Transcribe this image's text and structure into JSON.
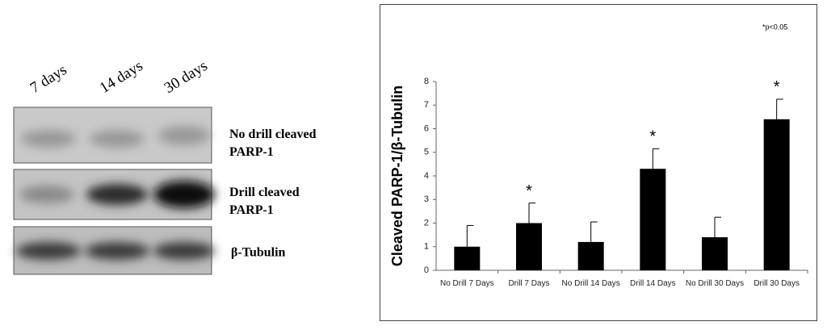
{
  "blot": {
    "lanes": [
      "7 days",
      "14 days",
      "30 days"
    ],
    "rows": [
      "No drill cleaved PARP-1",
      "Drill cleaved PARP-1",
      "β-Tubulin"
    ]
  },
  "chart_data": {
    "type": "bar",
    "y_label": "Cleaved PARP-1/β-Tubulin",
    "note": "*p<0.05",
    "categories": [
      "No Drill 7 Days",
      "Drill 7 Days",
      "No Drill 14 Days",
      "Drill 14 Days",
      "No Drill 30 Days",
      "Drill 30 Days"
    ],
    "values": [
      1.0,
      2.0,
      1.2,
      4.3,
      1.4,
      6.4
    ],
    "errors": [
      0.9,
      0.85,
      0.85,
      0.85,
      0.85,
      0.85
    ],
    "markers": [
      null,
      "*",
      null,
      "*",
      null,
      "*"
    ],
    "color": "#000000",
    "ylim": [
      0,
      8
    ],
    "yticks": [
      0,
      1,
      2,
      3,
      4,
      5,
      6,
      7,
      8
    ],
    "grid": false
  }
}
